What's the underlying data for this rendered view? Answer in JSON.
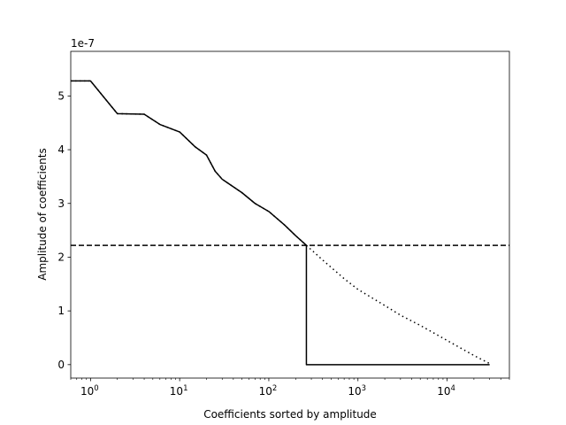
{
  "chart_data": {
    "type": "line",
    "title": "",
    "xlabel": "Coefficients sorted by amplitude",
    "ylabel": "Amplitude of coefficients",
    "y_offset_label": "1e-7",
    "xscale": "log",
    "xlim": [
      0.6,
      50000
    ],
    "ylim": [
      -0.25,
      5.83
    ],
    "x_ticks": [
      1,
      10,
      100,
      1000,
      10000
    ],
    "x_tick_labels": [
      {
        "base": "10",
        "exp": "0"
      },
      {
        "base": "10",
        "exp": "1"
      },
      {
        "base": "10",
        "exp": "2"
      },
      {
        "base": "10",
        "exp": "3"
      },
      {
        "base": "10",
        "exp": "4"
      }
    ],
    "y_ticks": [
      0,
      1,
      2,
      3,
      4,
      5
    ],
    "y_tick_labels": [
      "0",
      "1",
      "2",
      "3",
      "4",
      "5"
    ],
    "grid": false,
    "legend": null,
    "series": [
      {
        "style": "dotted",
        "color": "#000000",
        "x": [
          0.6,
          1,
          2,
          4,
          6,
          10,
          15,
          20,
          25,
          30,
          50,
          70,
          100,
          150,
          200,
          264,
          400,
          700,
          1000,
          2000,
          3000,
          5000,
          10000,
          20000,
          30000
        ],
        "y": [
          5.28,
          5.28,
          4.67,
          4.66,
          4.47,
          4.33,
          4.05,
          3.9,
          3.6,
          3.45,
          3.2,
          3.0,
          2.85,
          2.6,
          2.4,
          2.22,
          1.95,
          1.6,
          1.4,
          1.1,
          0.92,
          0.73,
          0.45,
          0.17,
          0.02
        ]
      },
      {
        "style": "solid",
        "color": "#000000",
        "x": [
          0.6,
          1,
          2,
          4,
          6,
          10,
          15,
          20,
          25,
          30,
          50,
          70,
          100,
          150,
          200,
          264,
          264,
          30000
        ],
        "y": [
          5.28,
          5.28,
          4.67,
          4.66,
          4.47,
          4.33,
          4.05,
          3.9,
          3.6,
          3.45,
          3.2,
          3.0,
          2.85,
          2.6,
          2.4,
          2.22,
          0,
          0
        ]
      }
    ],
    "hlines": [
      {
        "y": 2.22,
        "style": "dashed",
        "color": "#000000"
      }
    ]
  }
}
